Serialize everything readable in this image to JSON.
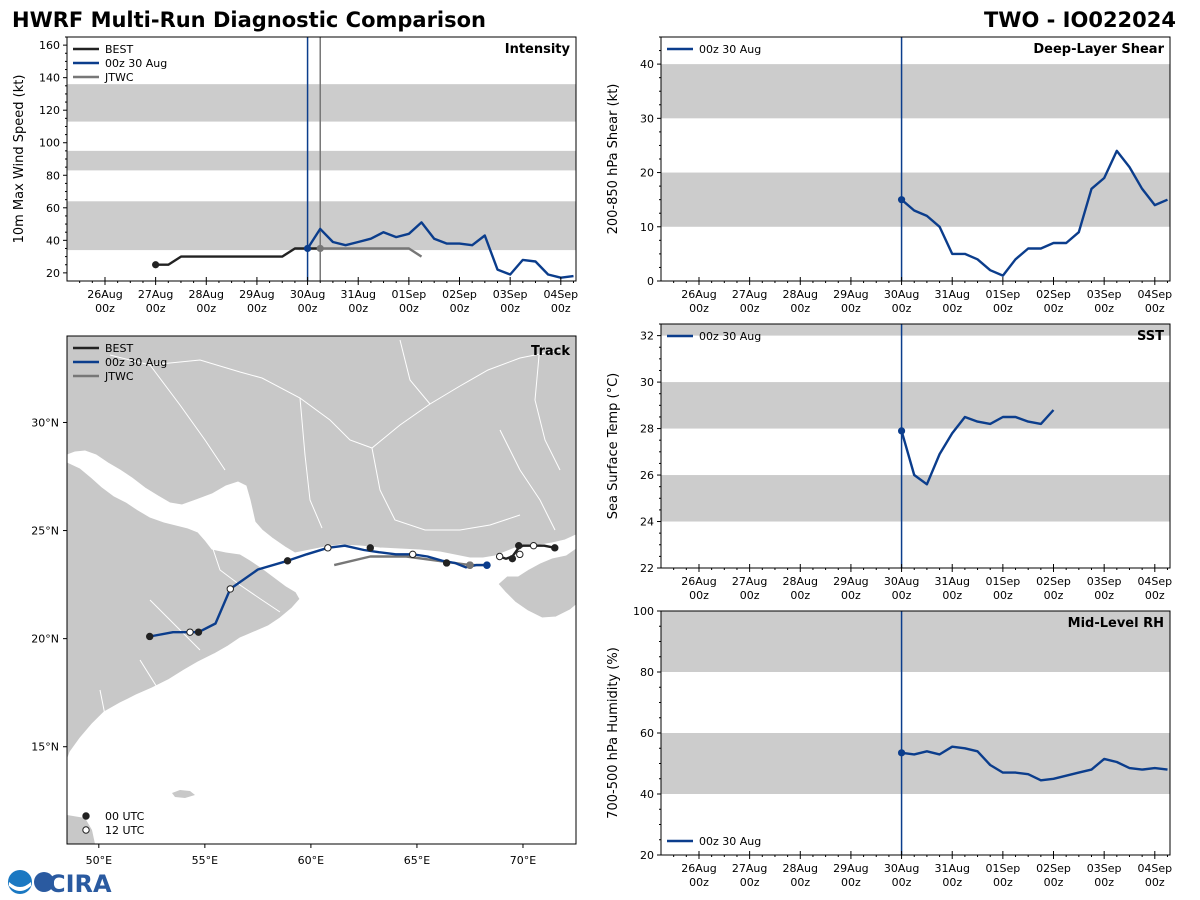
{
  "title_left": "HWRF Multi-Run Diagnostic Comparison",
  "title_right": "TWO - IO022024",
  "logo": {
    "text": "CIRA"
  },
  "colors": {
    "best": "#222222",
    "run": "#0b3d8c",
    "jtwc": "#777777",
    "band": "#cccccc",
    "land": "#c8c8c8"
  },
  "time_axis": {
    "ticks": [
      0,
      1,
      2,
      3,
      4,
      5,
      6,
      7,
      8,
      9
    ],
    "tick_day_labels": [
      "26Aug",
      "27Aug",
      "28Aug",
      "29Aug",
      "30Aug",
      "31Aug",
      "01Sep",
      "02Sep",
      "03Sep",
      "04Sep"
    ],
    "tick_hour_labels": [
      "00z",
      "00z",
      "00z",
      "00z",
      "00z",
      "00z",
      "00z",
      "00z",
      "00z",
      "00z"
    ],
    "xlim": [
      -0.75,
      9.3
    ],
    "run_init_time": 4.0
  },
  "chart_data": [
    {
      "id": "intensity",
      "type": "line",
      "title": "Intensity",
      "ylabel": "10m Max Wind Speed (kt)",
      "ylim": [
        15,
        165
      ],
      "yticks": [
        20,
        40,
        60,
        80,
        100,
        120,
        140,
        160
      ],
      "bands": [
        [
          34,
          64
        ],
        [
          83,
          95
        ],
        [
          113,
          136
        ]
      ],
      "legend": [
        "BEST",
        "00z 30 Aug",
        "JTWC"
      ],
      "vlines": [
        4.0,
        4.25
      ],
      "series": [
        {
          "name": "BEST",
          "color_key": "best",
          "x": [
            1.0,
            1.25,
            1.5,
            1.75,
            2.0,
            2.25,
            2.5,
            2.75,
            3.0,
            3.25,
            3.5,
            3.75,
            4.0,
            4.25
          ],
          "y": [
            25,
            25,
            30,
            30,
            30,
            30,
            30,
            30,
            30,
            30,
            30,
            35,
            35,
            35
          ]
        },
        {
          "name": "00z 30 Aug",
          "color_key": "run",
          "x": [
            4.0,
            4.25,
            4.5,
            4.75,
            5.0,
            5.25,
            5.5,
            5.75,
            6.0,
            6.25,
            6.5,
            6.75,
            7.0,
            7.25,
            7.5,
            7.75,
            8.0,
            8.25,
            8.5,
            8.75,
            9.0,
            9.25
          ],
          "y": [
            35,
            47,
            39,
            37,
            39,
            41,
            45,
            42,
            44,
            51,
            41,
            38,
            38,
            37,
            43,
            22,
            19,
            28,
            27,
            19,
            17,
            18
          ]
        },
        {
          "name": "JTWC",
          "color_key": "jtwc",
          "x": [
            4.25,
            4.5,
            5.0,
            5.5,
            6.0,
            6.25
          ],
          "y": [
            35,
            35,
            35,
            35,
            35,
            30
          ]
        }
      ]
    },
    {
      "id": "shear",
      "type": "line",
      "title": "Deep-Layer Shear",
      "ylabel": "200-850 hPa Shear (kt)",
      "ylim": [
        0,
        45
      ],
      "yticks": [
        0,
        10,
        20,
        30,
        40
      ],
      "bands": [
        [
          10,
          20
        ],
        [
          30,
          40
        ]
      ],
      "legend": [
        "00z 30 Aug"
      ],
      "vlines": [
        4.0
      ],
      "series": [
        {
          "name": "00z 30 Aug",
          "color_key": "run",
          "x": [
            4.0,
            4.25,
            4.5,
            4.75,
            5.0,
            5.25,
            5.5,
            5.75,
            6.0,
            6.25,
            6.5,
            6.75,
            7.0,
            7.25,
            7.5,
            7.75,
            8.0,
            8.25,
            8.5,
            8.75,
            9.0,
            9.25
          ],
          "y": [
            15,
            13,
            12,
            10,
            5,
            5,
            4,
            2,
            1,
            4,
            6,
            6,
            7,
            7,
            9,
            17,
            19,
            24,
            21,
            17,
            14,
            15
          ]
        }
      ]
    },
    {
      "id": "sst",
      "type": "line",
      "title": "SST",
      "ylabel": "Sea Surface Temp (°C)",
      "ylim": [
        22,
        32.5
      ],
      "yticks": [
        22,
        24,
        26,
        28,
        30,
        32
      ],
      "bands": [
        [
          24,
          26
        ],
        [
          28,
          30
        ],
        [
          32,
          34
        ]
      ],
      "legend": [
        "00z 30 Aug"
      ],
      "vlines": [
        4.0
      ],
      "series": [
        {
          "name": "00z 30 Aug",
          "color_key": "run",
          "x": [
            4.0,
            4.25,
            4.5,
            4.75,
            5.0,
            5.25,
            5.5,
            5.75,
            6.0,
            6.25,
            6.5,
            6.75,
            7.0
          ],
          "y": [
            27.9,
            26.0,
            25.6,
            26.9,
            27.8,
            28.5,
            28.3,
            28.2,
            28.5,
            28.5,
            28.3,
            28.2,
            28.8
          ]
        }
      ]
    },
    {
      "id": "rh",
      "type": "line",
      "title": "Mid-Level RH",
      "ylabel": "700-500 hPa Humidity (%)",
      "ylim": [
        20,
        100
      ],
      "yticks": [
        20,
        40,
        60,
        80,
        100
      ],
      "bands": [
        [
          40,
          60
        ],
        [
          80,
          100
        ]
      ],
      "legend": [
        "00z 30 Aug"
      ],
      "vlines": [
        4.0
      ],
      "series": [
        {
          "name": "00z 30 Aug",
          "color_key": "run",
          "x": [
            4.0,
            4.25,
            4.5,
            4.75,
            5.0,
            5.25,
            5.5,
            5.75,
            6.0,
            6.25,
            6.5,
            6.75,
            7.0,
            7.25,
            7.5,
            7.75,
            8.0,
            8.25,
            8.5,
            8.75,
            9.0,
            9.25
          ],
          "y": [
            53.5,
            53,
            54,
            53,
            55.5,
            55,
            54,
            49.5,
            47,
            47,
            46.5,
            44.5,
            45,
            46,
            47,
            48,
            51.5,
            50.5,
            48.5,
            48,
            48.5,
            48
          ]
        }
      ]
    },
    {
      "id": "track",
      "type": "scatter",
      "title": "Track",
      "xlim": [
        48.5,
        72.5
      ],
      "ylim": [
        10.5,
        34
      ],
      "xticks": [
        50,
        55,
        60,
        65,
        70
      ],
      "xtick_labels": [
        "50°E",
        "55°E",
        "60°E",
        "65°E",
        "70°E"
      ],
      "yticks": [
        15,
        20,
        25,
        30
      ],
      "ytick_labels": [
        "15°N",
        "20°N",
        "25°N",
        "30°N"
      ],
      "legend": [
        "BEST",
        "00z 30 Aug",
        "JTWC"
      ],
      "marker_legend": [
        "00 UTC",
        "12 UTC"
      ],
      "best": {
        "lon": [
          71.5,
          71.0,
          70.5,
          70.0,
          69.8,
          69.5,
          69.2,
          68.9
        ],
        "lat": [
          24.2,
          24.3,
          24.3,
          24.3,
          24.2,
          23.8,
          23.7,
          23.8
        ]
      },
      "run": {
        "lon": [
          68.3,
          67.8,
          67.3,
          66.8,
          66.2,
          65.5,
          64.8,
          64.0,
          63.2,
          62.5,
          61.6,
          60.8,
          59.8,
          58.9,
          57.5,
          56.2,
          55.5,
          54.7,
          54.3,
          53.5,
          52.4
        ],
        "lat": [
          23.4,
          23.4,
          23.3,
          23.5,
          23.6,
          23.8,
          23.9,
          23.9,
          24.0,
          24.1,
          24.3,
          24.2,
          23.9,
          23.6,
          23.2,
          22.3,
          20.7,
          20.3,
          20.3,
          20.3,
          20.1
        ]
      },
      "jtwc": {
        "lon": [
          68.3,
          67.5,
          66.0,
          64.5,
          62.8,
          61.1
        ],
        "lat": [
          23.4,
          23.4,
          23.6,
          23.8,
          23.8,
          23.4
        ]
      },
      "points": [
        {
          "lon": 71.5,
          "lat": 24.2,
          "t": "00"
        },
        {
          "lon": 70.5,
          "lat": 24.3,
          "t": "12"
        },
        {
          "lon": 69.8,
          "lat": 24.3,
          "t": "00"
        },
        {
          "lon": 69.85,
          "lat": 23.9,
          "t": "12"
        },
        {
          "lon": 69.5,
          "lat": 23.7,
          "t": "00"
        },
        {
          "lon": 68.9,
          "lat": 23.8,
          "t": "12"
        },
        {
          "lon": 66.4,
          "lat": 23.5,
          "t": "00"
        },
        {
          "lon": 67.5,
          "lat": 23.4,
          "t": "00"
        },
        {
          "lon": 64.8,
          "lat": 23.9,
          "t": "12"
        },
        {
          "lon": 62.8,
          "lat": 24.2,
          "t": "00"
        },
        {
          "lon": 60.8,
          "lat": 24.2,
          "t": "12"
        },
        {
          "lon": 58.9,
          "lat": 23.6,
          "t": "00"
        },
        {
          "lon": 56.2,
          "lat": 22.3,
          "t": "12"
        },
        {
          "lon": 54.7,
          "lat": 20.3,
          "t": "00"
        },
        {
          "lon": 54.3,
          "lat": 20.3,
          "t": "12"
        },
        {
          "lon": 52.4,
          "lat": 20.1,
          "t": "00"
        }
      ]
    }
  ]
}
